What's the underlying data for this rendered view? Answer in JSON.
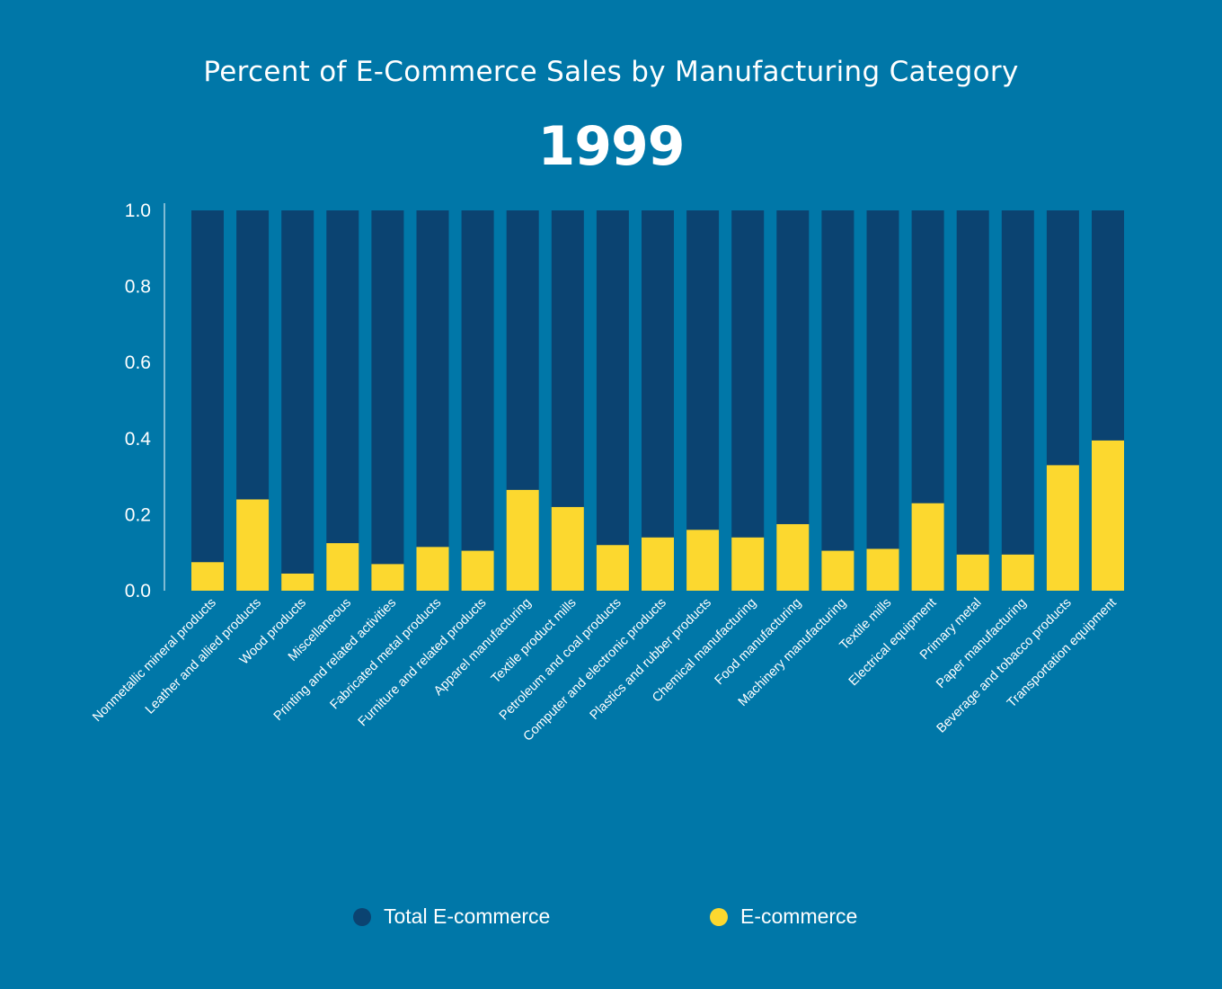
{
  "colors": {
    "background": "#0077a8",
    "total_ecommerce": "#0b4371",
    "ecommerce": "#fcd82f",
    "text": "#ffffff"
  },
  "chart_data": {
    "type": "bar",
    "stacking": "overlay",
    "title": "Percent of E-Commerce Sales by Manufacturing Category",
    "subtitle": "1999",
    "xlabel": "",
    "ylabel": "",
    "ylim": [
      0,
      1.0
    ],
    "yticks": [
      "0.0",
      "0.2",
      "0.4",
      "0.6",
      "0.8",
      "1.0"
    ],
    "grid": false,
    "legend_position": "bottom",
    "categories": [
      "Nonmetallic mineral products",
      "Leather and allied products",
      "Wood products",
      "Miscellaneous",
      "Printing and related activities",
      "Fabricated metal products",
      "Furniture and related products",
      "Apparel manufacturing",
      "Textile product mills",
      "Petroleum and coal products",
      "Computer and electronic products",
      "Plastics and rubber products",
      "Chemical manufacturing",
      "Food manufacturing",
      "Machinery manufacturing",
      "Textile mills",
      "Electrical equipment",
      "Primary metal",
      "Paper manufacturing",
      "Beverage and tobacco products",
      "Transportation equipment"
    ],
    "series": [
      {
        "name": "Total E-commerce",
        "values": [
          1,
          1,
          1,
          1,
          1,
          1,
          1,
          1,
          1,
          1,
          1,
          1,
          1,
          1,
          1,
          1,
          1,
          1,
          1,
          1,
          1
        ]
      },
      {
        "name": "E-commerce",
        "values": [
          0.075,
          0.24,
          0.045,
          0.125,
          0.07,
          0.115,
          0.105,
          0.265,
          0.22,
          0.12,
          0.14,
          0.16,
          0.14,
          0.175,
          0.105,
          0.11,
          0.23,
          0.095,
          0.095,
          0.33,
          0.395
        ]
      }
    ]
  },
  "legend": {
    "items": [
      {
        "label": "Total E-commerce"
      },
      {
        "label": "E-commerce"
      }
    ]
  }
}
